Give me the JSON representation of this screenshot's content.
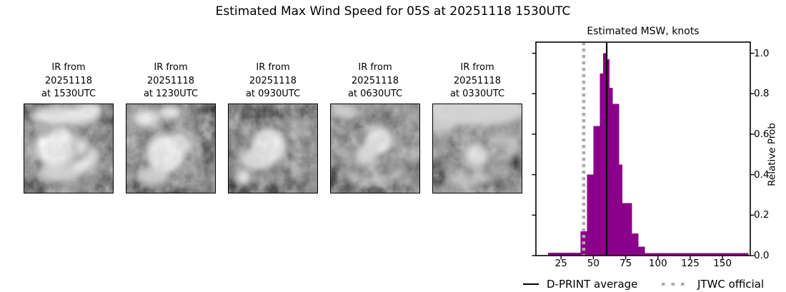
{
  "figure": {
    "title": "Estimated Max Wind Speed for 05S at 20251118 1530UTC"
  },
  "panels": [
    {
      "caption_lines": [
        "IR from",
        "20251118",
        "at 1530UTC"
      ]
    },
    {
      "caption_lines": [
        "IR from",
        "20251118",
        "at 1230UTC"
      ]
    },
    {
      "caption_lines": [
        "IR from",
        "20251118",
        "at 0930UTC"
      ]
    },
    {
      "caption_lines": [
        "IR from",
        "20251118",
        "at 0630UTC"
      ]
    },
    {
      "caption_lines": [
        "IR from",
        "20251118",
        "at 0330UTC"
      ]
    }
  ],
  "chart_data": {
    "type": "bar",
    "title": "Estimated MSW, knots",
    "xlabel": "",
    "ylabel": "Relative Prob",
    "xlim": [
      5.5,
      171.5
    ],
    "ylim": [
      0,
      1.055
    ],
    "grid": false,
    "x_ticks": [
      25,
      50,
      75,
      100,
      125,
      150
    ],
    "y_ticks": [
      {
        "v": 0.0,
        "label": "0.0"
      },
      {
        "v": 0.2,
        "label": "0.2"
      },
      {
        "v": 0.4,
        "label": "0.4"
      },
      {
        "v": 0.6,
        "label": "0.6"
      },
      {
        "v": 0.8,
        "label": "0.8"
      },
      {
        "v": 1.0,
        "label": "1.0"
      }
    ],
    "bar_color": "#8B008B",
    "bars_knots": [
      {
        "x0": 15,
        "x1": 40,
        "h": 0.015
      },
      {
        "x0": 40,
        "x1": 45,
        "h": 0.12
      },
      {
        "x0": 45,
        "x1": 50,
        "h": 0.4
      },
      {
        "x0": 50,
        "x1": 55,
        "h": 0.64
      },
      {
        "x0": 55,
        "x1": 57.5,
        "h": 0.9
      },
      {
        "x0": 57.5,
        "x1": 60,
        "h": 1.0
      },
      {
        "x0": 60,
        "x1": 62.5,
        "h": 0.97
      },
      {
        "x0": 62.5,
        "x1": 65,
        "h": 0.83
      },
      {
        "x0": 65,
        "x1": 70,
        "h": 0.75
      },
      {
        "x0": 70,
        "x1": 72.5,
        "h": 0.45
      },
      {
        "x0": 72.5,
        "x1": 80,
        "h": 0.26
      },
      {
        "x0": 80,
        "x1": 85,
        "h": 0.11
      },
      {
        "x0": 85,
        "x1": 90,
        "h": 0.045
      },
      {
        "x0": 90,
        "x1": 170,
        "h": 0.012
      }
    ],
    "reference_lines": [
      {
        "label": "D-PRINT average",
        "value_knots": 60.3,
        "style": "solid",
        "color": "#000000"
      },
      {
        "label": "JTWC official",
        "value_knots": 42.5,
        "style": "dotted",
        "color": "#ababab"
      }
    ]
  }
}
